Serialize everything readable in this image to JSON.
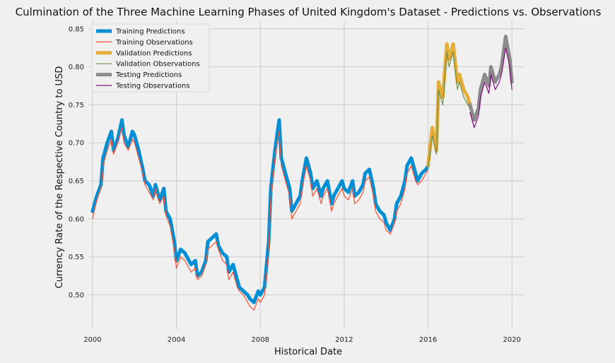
{
  "chart_data": {
    "type": "line",
    "title": "Culmination of the Three Machine Learning Phases of United Kingdom's Dataset - Predictions vs. Observations",
    "xlabel": "Historical Date",
    "ylabel": "Currency Rate of the Respective Country to USD",
    "xlim": [
      1999.8,
      2020.6
    ],
    "ylim": [
      0.455,
      0.86
    ],
    "x_ticks": [
      2000,
      2004,
      2008,
      2012,
      2016,
      2020
    ],
    "x_tick_labels": [
      "2000",
      "2004",
      "2008",
      "2012",
      "2016",
      "2020"
    ],
    "y_ticks": [
      0.5,
      0.55,
      0.6,
      0.65,
      0.7,
      0.75,
      0.8,
      0.85
    ],
    "y_tick_labels": [
      "0.50",
      "0.55",
      "0.60",
      "0.65",
      "0.70",
      "0.75",
      "0.80",
      "0.85"
    ],
    "grid": true,
    "legend_position": "top-left",
    "series": [
      {
        "name": "Training Predictions",
        "color": "#008fd5",
        "style": "thick",
        "x": [
          2000.0,
          2000.2,
          2000.4,
          2000.5,
          2000.7,
          2000.9,
          2001.0,
          2001.2,
          2001.4,
          2001.5,
          2001.7,
          2001.9,
          2002.0,
          2002.2,
          2002.4,
          2002.5,
          2002.7,
          2002.9,
          2003.0,
          2003.2,
          2003.4,
          2003.5,
          2003.7,
          2003.9,
          2004.0,
          2004.2,
          2004.4,
          2004.5,
          2004.7,
          2004.9,
          2005.0,
          2005.2,
          2005.4,
          2005.5,
          2005.7,
          2005.9,
          2006.0,
          2006.2,
          2006.4,
          2006.5,
          2006.7,
          2006.9,
          2007.0,
          2007.2,
          2007.4,
          2007.5,
          2007.7,
          2007.9,
          2008.0,
          2008.2,
          2008.4,
          2008.5,
          2008.7,
          2008.9,
          2009.0,
          2009.2,
          2009.4,
          2009.5,
          2009.7,
          2009.9,
          2010.0,
          2010.2,
          2010.4,
          2010.5,
          2010.7,
          2010.9,
          2011.0,
          2011.2,
          2011.4,
          2011.5,
          2011.7,
          2011.9,
          2012.0,
          2012.2,
          2012.4,
          2012.5,
          2012.7,
          2012.9,
          2013.0,
          2013.2,
          2013.4,
          2013.5,
          2013.7,
          2013.9,
          2014.0,
          2014.2,
          2014.4,
          2014.5,
          2014.7,
          2014.9,
          2015.0,
          2015.2,
          2015.4,
          2015.5,
          2015.7,
          2015.9,
          2016.0
        ],
        "values": [
          0.61,
          0.63,
          0.645,
          0.68,
          0.7,
          0.715,
          0.69,
          0.705,
          0.73,
          0.71,
          0.695,
          0.715,
          0.71,
          0.69,
          0.665,
          0.65,
          0.645,
          0.63,
          0.645,
          0.625,
          0.64,
          0.61,
          0.6,
          0.57,
          0.545,
          0.56,
          0.555,
          0.55,
          0.54,
          0.545,
          0.525,
          0.53,
          0.545,
          0.57,
          0.575,
          0.58,
          0.565,
          0.555,
          0.55,
          0.53,
          0.54,
          0.52,
          0.51,
          0.505,
          0.5,
          0.495,
          0.49,
          0.505,
          0.5,
          0.51,
          0.57,
          0.64,
          0.69,
          0.73,
          0.68,
          0.66,
          0.64,
          0.61,
          0.62,
          0.63,
          0.65,
          0.68,
          0.66,
          0.64,
          0.65,
          0.63,
          0.64,
          0.65,
          0.62,
          0.63,
          0.64,
          0.65,
          0.64,
          0.635,
          0.65,
          0.63,
          0.635,
          0.645,
          0.66,
          0.665,
          0.64,
          0.62,
          0.61,
          0.605,
          0.595,
          0.585,
          0.6,
          0.62,
          0.63,
          0.65,
          0.67,
          0.68,
          0.66,
          0.65,
          0.66,
          0.665,
          0.67
        ]
      },
      {
        "name": "Training Observations",
        "color": "#fc4f30",
        "style": "thin",
        "x": [
          2000.0,
          2000.2,
          2000.4,
          2000.5,
          2000.7,
          2000.9,
          2001.0,
          2001.2,
          2001.4,
          2001.5,
          2001.7,
          2001.9,
          2002.0,
          2002.2,
          2002.4,
          2002.5,
          2002.7,
          2002.9,
          2003.0,
          2003.2,
          2003.4,
          2003.5,
          2003.7,
          2003.9,
          2004.0,
          2004.2,
          2004.4,
          2004.5,
          2004.7,
          2004.9,
          2005.0,
          2005.2,
          2005.4,
          2005.5,
          2005.7,
          2005.9,
          2006.0,
          2006.2,
          2006.4,
          2006.5,
          2006.7,
          2006.9,
          2007.0,
          2007.2,
          2007.4,
          2007.5,
          2007.7,
          2007.9,
          2008.0,
          2008.2,
          2008.4,
          2008.5,
          2008.7,
          2008.9,
          2009.0,
          2009.2,
          2009.4,
          2009.5,
          2009.7,
          2009.9,
          2010.0,
          2010.2,
          2010.4,
          2010.5,
          2010.7,
          2010.9,
          2011.0,
          2011.2,
          2011.4,
          2011.5,
          2011.7,
          2011.9,
          2012.0,
          2012.2,
          2012.4,
          2012.5,
          2012.7,
          2012.9,
          2013.0,
          2013.2,
          2013.4,
          2013.5,
          2013.7,
          2013.9,
          2014.0,
          2014.2,
          2014.4,
          2014.5,
          2014.7,
          2014.9,
          2015.0,
          2015.2,
          2015.4,
          2015.5,
          2015.7,
          2015.9,
          2016.0
        ],
        "values": [
          0.6,
          0.625,
          0.64,
          0.67,
          0.69,
          0.705,
          0.685,
          0.7,
          0.72,
          0.7,
          0.69,
          0.705,
          0.7,
          0.68,
          0.66,
          0.645,
          0.635,
          0.625,
          0.64,
          0.62,
          0.63,
          0.605,
          0.59,
          0.56,
          0.535,
          0.55,
          0.545,
          0.54,
          0.53,
          0.535,
          0.52,
          0.525,
          0.54,
          0.56,
          0.565,
          0.57,
          0.56,
          0.545,
          0.54,
          0.52,
          0.53,
          0.51,
          0.505,
          0.5,
          0.49,
          0.485,
          0.48,
          0.495,
          0.49,
          0.5,
          0.56,
          0.63,
          0.68,
          0.715,
          0.67,
          0.65,
          0.63,
          0.6,
          0.61,
          0.62,
          0.64,
          0.67,
          0.65,
          0.63,
          0.64,
          0.62,
          0.63,
          0.64,
          0.61,
          0.62,
          0.63,
          0.64,
          0.63,
          0.625,
          0.64,
          0.62,
          0.625,
          0.635,
          0.65,
          0.655,
          0.63,
          0.61,
          0.6,
          0.595,
          0.585,
          0.58,
          0.595,
          0.61,
          0.62,
          0.64,
          0.66,
          0.67,
          0.65,
          0.645,
          0.65,
          0.66,
          0.665
        ]
      },
      {
        "name": "Validation Predictions",
        "color": "#e5ae38",
        "style": "thick",
        "x": [
          2016.0,
          2016.2,
          2016.4,
          2016.5,
          2016.7,
          2016.9,
          2017.0,
          2017.2,
          2017.4,
          2017.5,
          2017.7,
          2017.9,
          2018.0
        ],
        "values": [
          0.67,
          0.72,
          0.69,
          0.78,
          0.76,
          0.83,
          0.81,
          0.83,
          0.78,
          0.79,
          0.77,
          0.76,
          0.75
        ]
      },
      {
        "name": "Validation Observations",
        "color": "#6d904f",
        "style": "thin",
        "x": [
          2016.0,
          2016.2,
          2016.4,
          2016.5,
          2016.7,
          2016.9,
          2017.0,
          2017.2,
          2017.4,
          2017.5,
          2017.7,
          2017.9,
          2018.0
        ],
        "values": [
          0.665,
          0.71,
          0.685,
          0.77,
          0.75,
          0.82,
          0.8,
          0.82,
          0.77,
          0.78,
          0.76,
          0.75,
          0.745
        ]
      },
      {
        "name": "Testing Predictions",
        "color": "#8b8b8b",
        "style": "thick",
        "x": [
          2018.0,
          2018.2,
          2018.4,
          2018.5,
          2018.7,
          2018.9,
          2019.0,
          2019.2,
          2019.4,
          2019.5,
          2019.7,
          2019.9,
          2020.0
        ],
        "values": [
          0.75,
          0.73,
          0.745,
          0.77,
          0.79,
          0.775,
          0.8,
          0.78,
          0.79,
          0.8,
          0.84,
          0.81,
          0.78
        ]
      },
      {
        "name": "Testing Observations",
        "color": "#810f7c",
        "style": "thin",
        "x": [
          2018.0,
          2018.2,
          2018.4,
          2018.5,
          2018.7,
          2018.9,
          2019.0,
          2019.2,
          2019.4,
          2019.5,
          2019.7,
          2019.9,
          2020.0
        ],
        "values": [
          0.74,
          0.72,
          0.735,
          0.76,
          0.78,
          0.765,
          0.79,
          0.77,
          0.78,
          0.79,
          0.825,
          0.8,
          0.77
        ]
      }
    ]
  }
}
